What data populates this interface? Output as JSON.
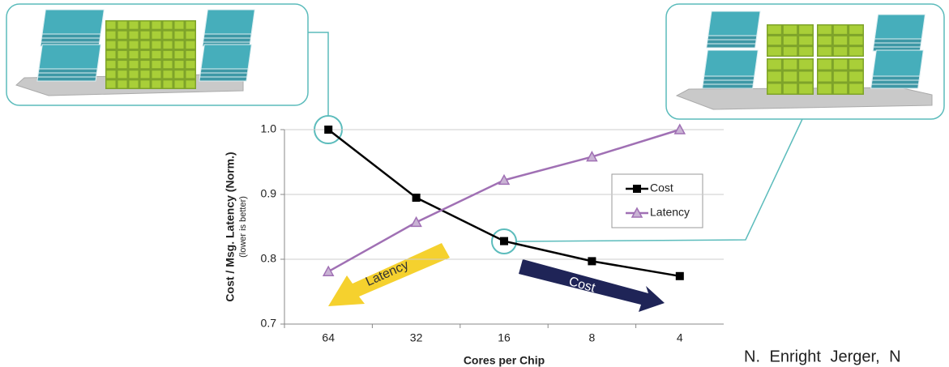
{
  "chart_data": {
    "type": "line",
    "y_label": "Cost  /  Msg. Latency (Norm.)",
    "y_sublabel": "(lower is better)",
    "x_label": "Cores per Chip",
    "categories": [
      "64",
      "32",
      "16",
      "8",
      "4"
    ],
    "series": [
      {
        "name": "Cost",
        "color": "#000000",
        "marker": "square",
        "values": [
          1.0,
          0.895,
          0.828,
          0.797,
          0.774
        ]
      },
      {
        "name": "Latency",
        "color": "#a070b4",
        "marker": "triangle",
        "values": [
          0.781,
          0.857,
          0.922,
          0.958,
          1.0
        ]
      }
    ],
    "ylim": [
      0.7,
      1.0
    ],
    "yticks": [
      0.7,
      0.8,
      0.9,
      {
        "value": 1.0,
        "label": "1.0"
      }
    ],
    "grid": true,
    "annotations": [
      "Latency",
      "Cost"
    ],
    "source": "N. Enright Jerger, N"
  }
}
